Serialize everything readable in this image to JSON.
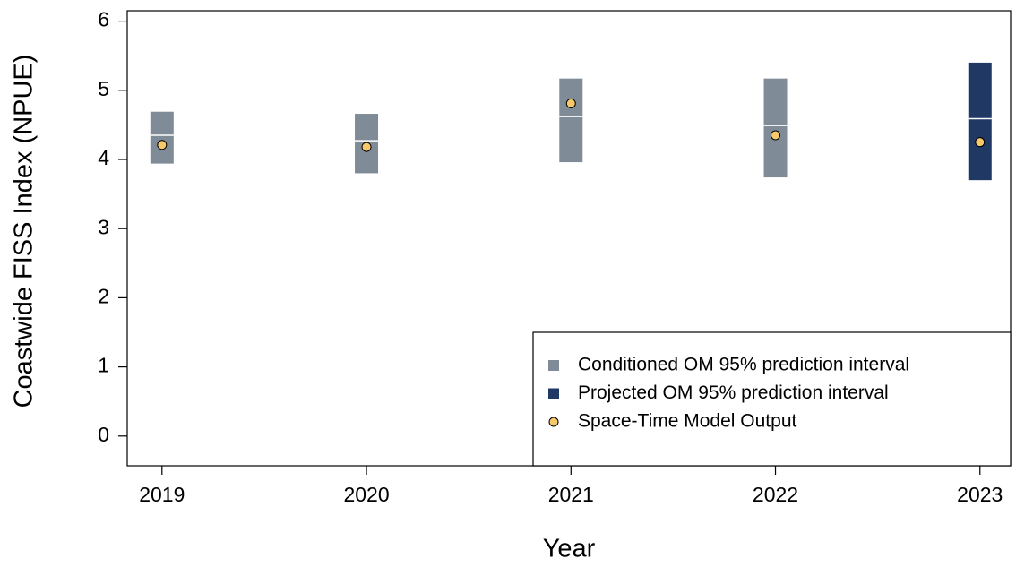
{
  "chart_data": {
    "type": "interval",
    "x_label": "Year",
    "y_label": "Coastwide FISS Index (NPUE)",
    "x": [
      2019,
      2020,
      2021,
      2022,
      2023
    ],
    "series": [
      {
        "name": "Conditioned OM 95% prediction interval",
        "color": "#7f8c97",
        "kind": "interval",
        "lower": [
          3.94,
          3.8,
          3.96,
          3.74,
          null
        ],
        "median": [
          4.35,
          4.27,
          4.62,
          4.49,
          null
        ],
        "upper": [
          4.69,
          4.66,
          5.17,
          5.17,
          null
        ]
      },
      {
        "name": "Projected OM 95% prediction interval",
        "color": "#1f3864",
        "kind": "interval",
        "lower": [
          null,
          null,
          null,
          null,
          3.7
        ],
        "median": [
          null,
          null,
          null,
          null,
          4.59
        ],
        "upper": [
          null,
          null,
          null,
          null,
          5.4
        ]
      },
      {
        "name": "Space-Time Model Output",
        "color": "#f7c96b",
        "kind": "point",
        "values": [
          4.21,
          4.18,
          4.81,
          4.35,
          4.25
        ]
      }
    ],
    "xlim": [
      2018.83,
      2023.15
    ],
    "ylim": [
      -0.43,
      6.15
    ],
    "xticks": [
      2019,
      2020,
      2021,
      2022,
      2023
    ],
    "yticks": [
      0,
      1,
      2,
      3,
      4,
      5,
      6
    ],
    "legend": "bottom-right"
  }
}
